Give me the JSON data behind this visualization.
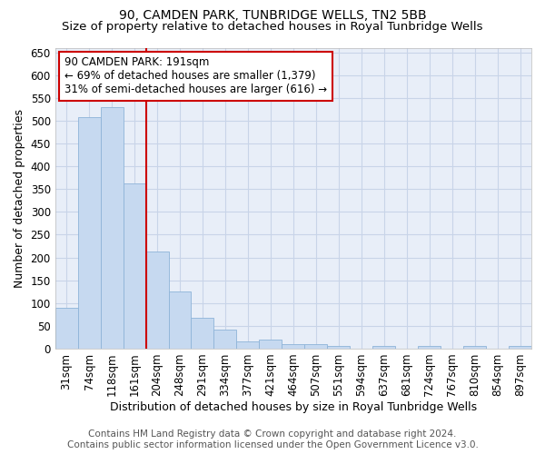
{
  "title": "90, CAMDEN PARK, TUNBRIDGE WELLS, TN2 5BB",
  "subtitle": "Size of property relative to detached houses in Royal Tunbridge Wells",
  "xlabel": "Distribution of detached houses by size in Royal Tunbridge Wells",
  "ylabel": "Number of detached properties",
  "footer_line1": "Contains HM Land Registry data © Crown copyright and database right 2024.",
  "footer_line2": "Contains public sector information licensed under the Open Government Licence v3.0.",
  "categories": [
    "31sqm",
    "74sqm",
    "118sqm",
    "161sqm",
    "204sqm",
    "248sqm",
    "291sqm",
    "334sqm",
    "377sqm",
    "421sqm",
    "464sqm",
    "507sqm",
    "551sqm",
    "594sqm",
    "637sqm",
    "681sqm",
    "724sqm",
    "767sqm",
    "810sqm",
    "854sqm",
    "897sqm"
  ],
  "values": [
    90,
    507,
    530,
    363,
    213,
    125,
    68,
    42,
    15,
    20,
    10,
    10,
    5,
    0,
    5,
    0,
    5,
    0,
    5,
    0,
    5
  ],
  "bar_color": "#c6d9f0",
  "bar_edge_color": "#8eb4d8",
  "vline_color": "#cc0000",
  "annotation_text": "90 CAMDEN PARK: 191sqm\n← 69% of detached houses are smaller (1,379)\n31% of semi-detached houses are larger (616) →",
  "annotation_box_color": "#ffffff",
  "annotation_box_edge": "#cc0000",
  "ylim": [
    0,
    660
  ],
  "yticks": [
    0,
    50,
    100,
    150,
    200,
    250,
    300,
    350,
    400,
    450,
    500,
    550,
    600,
    650
  ],
  "grid_color": "#c8d4e8",
  "bg_color": "#e8eef8",
  "title_fontsize": 10,
  "subtitle_fontsize": 9.5,
  "xlabel_fontsize": 9,
  "ylabel_fontsize": 9,
  "tick_fontsize": 8.5,
  "annot_fontsize": 8.5,
  "footer_fontsize": 7.5
}
